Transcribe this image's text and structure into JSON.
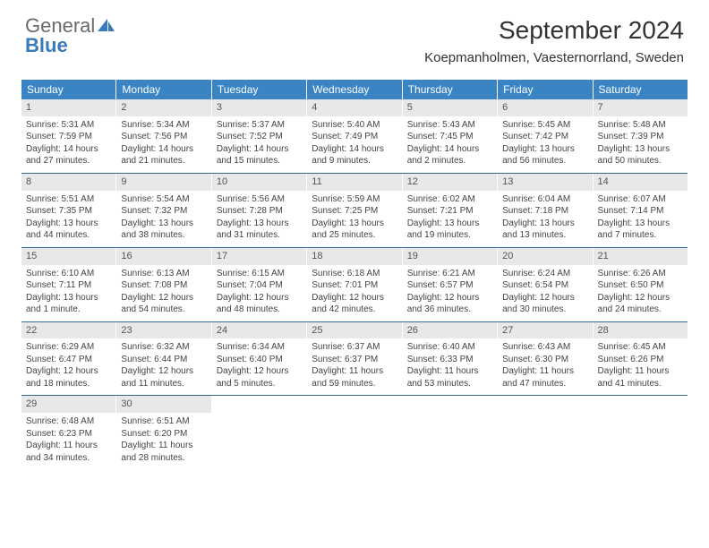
{
  "brand": {
    "name_part1": "General",
    "name_part2": "Blue",
    "icon_color": "#3a7ab8",
    "text_color_gray": "#6a6a6a"
  },
  "header": {
    "month_title": "September 2024",
    "location": "Koepmanholmen, Vaesternorrland, Sweden"
  },
  "colors": {
    "weekday_bg": "#3a84c4",
    "weekday_fg": "#ffffff",
    "daynum_bg": "#e8e8e8",
    "row_border": "#3a6a9a",
    "body_text": "#444444"
  },
  "weekdays": [
    "Sunday",
    "Monday",
    "Tuesday",
    "Wednesday",
    "Thursday",
    "Friday",
    "Saturday"
  ],
  "weeks": [
    [
      {
        "n": "1",
        "sr": "Sunrise: 5:31 AM",
        "ss": "Sunset: 7:59 PM",
        "d1": "Daylight: 14 hours",
        "d2": "and 27 minutes."
      },
      {
        "n": "2",
        "sr": "Sunrise: 5:34 AM",
        "ss": "Sunset: 7:56 PM",
        "d1": "Daylight: 14 hours",
        "d2": "and 21 minutes."
      },
      {
        "n": "3",
        "sr": "Sunrise: 5:37 AM",
        "ss": "Sunset: 7:52 PM",
        "d1": "Daylight: 14 hours",
        "d2": "and 15 minutes."
      },
      {
        "n": "4",
        "sr": "Sunrise: 5:40 AM",
        "ss": "Sunset: 7:49 PM",
        "d1": "Daylight: 14 hours",
        "d2": "and 9 minutes."
      },
      {
        "n": "5",
        "sr": "Sunrise: 5:43 AM",
        "ss": "Sunset: 7:45 PM",
        "d1": "Daylight: 14 hours",
        "d2": "and 2 minutes."
      },
      {
        "n": "6",
        "sr": "Sunrise: 5:45 AM",
        "ss": "Sunset: 7:42 PM",
        "d1": "Daylight: 13 hours",
        "d2": "and 56 minutes."
      },
      {
        "n": "7",
        "sr": "Sunrise: 5:48 AM",
        "ss": "Sunset: 7:39 PM",
        "d1": "Daylight: 13 hours",
        "d2": "and 50 minutes."
      }
    ],
    [
      {
        "n": "8",
        "sr": "Sunrise: 5:51 AM",
        "ss": "Sunset: 7:35 PM",
        "d1": "Daylight: 13 hours",
        "d2": "and 44 minutes."
      },
      {
        "n": "9",
        "sr": "Sunrise: 5:54 AM",
        "ss": "Sunset: 7:32 PM",
        "d1": "Daylight: 13 hours",
        "d2": "and 38 minutes."
      },
      {
        "n": "10",
        "sr": "Sunrise: 5:56 AM",
        "ss": "Sunset: 7:28 PM",
        "d1": "Daylight: 13 hours",
        "d2": "and 31 minutes."
      },
      {
        "n": "11",
        "sr": "Sunrise: 5:59 AM",
        "ss": "Sunset: 7:25 PM",
        "d1": "Daylight: 13 hours",
        "d2": "and 25 minutes."
      },
      {
        "n": "12",
        "sr": "Sunrise: 6:02 AM",
        "ss": "Sunset: 7:21 PM",
        "d1": "Daylight: 13 hours",
        "d2": "and 19 minutes."
      },
      {
        "n": "13",
        "sr": "Sunrise: 6:04 AM",
        "ss": "Sunset: 7:18 PM",
        "d1": "Daylight: 13 hours",
        "d2": "and 13 minutes."
      },
      {
        "n": "14",
        "sr": "Sunrise: 6:07 AM",
        "ss": "Sunset: 7:14 PM",
        "d1": "Daylight: 13 hours",
        "d2": "and 7 minutes."
      }
    ],
    [
      {
        "n": "15",
        "sr": "Sunrise: 6:10 AM",
        "ss": "Sunset: 7:11 PM",
        "d1": "Daylight: 13 hours",
        "d2": "and 1 minute."
      },
      {
        "n": "16",
        "sr": "Sunrise: 6:13 AM",
        "ss": "Sunset: 7:08 PM",
        "d1": "Daylight: 12 hours",
        "d2": "and 54 minutes."
      },
      {
        "n": "17",
        "sr": "Sunrise: 6:15 AM",
        "ss": "Sunset: 7:04 PM",
        "d1": "Daylight: 12 hours",
        "d2": "and 48 minutes."
      },
      {
        "n": "18",
        "sr": "Sunrise: 6:18 AM",
        "ss": "Sunset: 7:01 PM",
        "d1": "Daylight: 12 hours",
        "d2": "and 42 minutes."
      },
      {
        "n": "19",
        "sr": "Sunrise: 6:21 AM",
        "ss": "Sunset: 6:57 PM",
        "d1": "Daylight: 12 hours",
        "d2": "and 36 minutes."
      },
      {
        "n": "20",
        "sr": "Sunrise: 6:24 AM",
        "ss": "Sunset: 6:54 PM",
        "d1": "Daylight: 12 hours",
        "d2": "and 30 minutes."
      },
      {
        "n": "21",
        "sr": "Sunrise: 6:26 AM",
        "ss": "Sunset: 6:50 PM",
        "d1": "Daylight: 12 hours",
        "d2": "and 24 minutes."
      }
    ],
    [
      {
        "n": "22",
        "sr": "Sunrise: 6:29 AM",
        "ss": "Sunset: 6:47 PM",
        "d1": "Daylight: 12 hours",
        "d2": "and 18 minutes."
      },
      {
        "n": "23",
        "sr": "Sunrise: 6:32 AM",
        "ss": "Sunset: 6:44 PM",
        "d1": "Daylight: 12 hours",
        "d2": "and 11 minutes."
      },
      {
        "n": "24",
        "sr": "Sunrise: 6:34 AM",
        "ss": "Sunset: 6:40 PM",
        "d1": "Daylight: 12 hours",
        "d2": "and 5 minutes."
      },
      {
        "n": "25",
        "sr": "Sunrise: 6:37 AM",
        "ss": "Sunset: 6:37 PM",
        "d1": "Daylight: 11 hours",
        "d2": "and 59 minutes."
      },
      {
        "n": "26",
        "sr": "Sunrise: 6:40 AM",
        "ss": "Sunset: 6:33 PM",
        "d1": "Daylight: 11 hours",
        "d2": "and 53 minutes."
      },
      {
        "n": "27",
        "sr": "Sunrise: 6:43 AM",
        "ss": "Sunset: 6:30 PM",
        "d1": "Daylight: 11 hours",
        "d2": "and 47 minutes."
      },
      {
        "n": "28",
        "sr": "Sunrise: 6:45 AM",
        "ss": "Sunset: 6:26 PM",
        "d1": "Daylight: 11 hours",
        "d2": "and 41 minutes."
      }
    ],
    [
      {
        "n": "29",
        "sr": "Sunrise: 6:48 AM",
        "ss": "Sunset: 6:23 PM",
        "d1": "Daylight: 11 hours",
        "d2": "and 34 minutes."
      },
      {
        "n": "30",
        "sr": "Sunrise: 6:51 AM",
        "ss": "Sunset: 6:20 PM",
        "d1": "Daylight: 11 hours",
        "d2": "and 28 minutes."
      },
      null,
      null,
      null,
      null,
      null
    ]
  ]
}
